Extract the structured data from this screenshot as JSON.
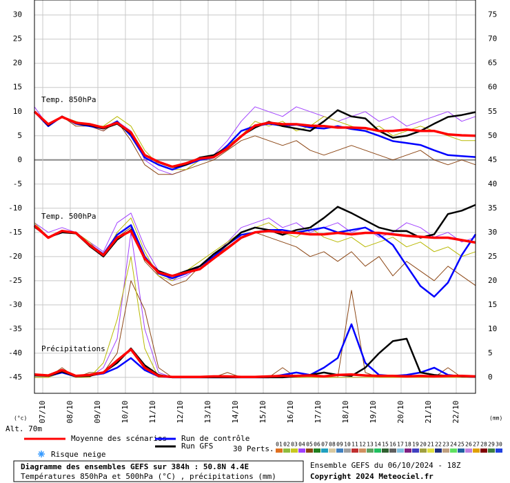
{
  "chart_data": {
    "type": "line",
    "title": "Diagramme des ensembles GEFS sur 384h : 50.8N 4.4E",
    "subtitle": "Températures 850hPa et 500hPa (°C) , précipitations (mm)",
    "run_info": "Ensemble GEFS du 06/10/2024 - 18Z",
    "copyright": "Copyright 2024 Meteociel.fr",
    "annotations": {
      "t850": "Temp. 850hPa",
      "t500": "Temp. 500hPa",
      "precip": "Précipitations",
      "y_unit": "(°c)",
      "y2_unit": "(mm)",
      "altitude": "Alt. 70m",
      "snow": "Risque neige",
      "perts": "30 Perts."
    },
    "categories": [
      "07/10",
      "08/10",
      "09/10",
      "10/10",
      "11/10",
      "12/10",
      "13/10",
      "14/10",
      "15/10",
      "16/10",
      "17/10",
      "18/10",
      "19/10",
      "20/10",
      "21/10",
      "22/10"
    ],
    "ylim": [
      -48.3,
      33.1
    ],
    "yticks": [
      30,
      25,
      20,
      15,
      10,
      5,
      0,
      -5,
      -10,
      -15,
      -20,
      -25,
      -30,
      -35,
      -40,
      -45
    ],
    "y2lim": [
      -3.3,
      78.1
    ],
    "y2ticks": [
      75,
      70,
      65,
      60,
      55,
      50,
      45,
      40,
      35,
      30,
      25,
      20,
      15,
      10,
      5,
      0
    ],
    "grid": true,
    "series": [
      {
        "name": "Moyenne des scénarios",
        "color": "#ff0000",
        "t850": [
          10,
          7.4,
          8.9,
          7.7,
          7.4,
          6.7,
          7.7,
          5.7,
          1,
          -0.4,
          -1.4,
          -0.7,
          0.3,
          0.6,
          2.4,
          4.9,
          7.1,
          7.7,
          7.4,
          7.4,
          7.1,
          7,
          6.7,
          6.7,
          6.6,
          6,
          6,
          6.3,
          6,
          6,
          5.3,
          5.1,
          5
        ],
        "t500": [
          -13.6,
          -16.1,
          -14.7,
          -15.1,
          -17.6,
          -19.7,
          -16.1,
          -14.7,
          -20.4,
          -23.3,
          -24,
          -23.3,
          -22.6,
          -20.4,
          -18.3,
          -16.1,
          -15,
          -14.7,
          -15,
          -15.1,
          -15.4,
          -15.4,
          -15.1,
          -15.4,
          -15.1,
          -15.1,
          -15.4,
          -15.7,
          -15.9,
          -16.1,
          -16.1,
          -16.6,
          -17.1
        ],
        "precip": [
          0.6,
          0.4,
          1.5,
          0.3,
          0.5,
          1,
          3.5,
          5.8,
          2,
          0.3,
          0.1,
          0.1,
          0.1,
          0.2,
          0.2,
          0.1,
          0.1,
          0.2,
          0.3,
          0.3,
          0.4,
          0.2,
          0.5,
          0.6,
          0.4,
          0.3,
          0.3,
          0.2,
          0.3,
          0.2,
          0.3,
          0.3,
          0.2
        ]
      },
      {
        "name": "Run de contrôle",
        "color": "#0000ff",
        "t850": [
          10,
          7,
          9,
          7.5,
          7,
          6.5,
          8,
          5,
          0.5,
          -1,
          -2,
          -1,
          0,
          0.5,
          3,
          6,
          7,
          7.5,
          7.1,
          7.3,
          6.7,
          6.5,
          7,
          6.4,
          6,
          5,
          3.9,
          3.5,
          3.1,
          2,
          1,
          0.8,
          0.6
        ],
        "t500": [
          -13.5,
          -16,
          -15,
          -15,
          -17.5,
          -19.5,
          -15.5,
          -13.5,
          -20,
          -23.5,
          -24.5,
          -23.5,
          -22,
          -20,
          -17.5,
          -15.5,
          -15,
          -14.5,
          -14.5,
          -15,
          -14.5,
          -14,
          -15,
          -14.5,
          -14,
          -15.5,
          -17.6,
          -21.9,
          -26.1,
          -28.3,
          -25.4,
          -19.7,
          -15.4
        ],
        "precip": [
          0.5,
          0.3,
          1,
          0.2,
          0.4,
          0.8,
          2,
          4,
          1.5,
          0.2,
          0,
          0,
          0,
          0,
          0,
          0,
          0,
          0,
          0.5,
          1,
          0.5,
          2,
          4,
          11,
          3,
          0.5,
          0.3,
          0.5,
          1,
          2,
          0.5,
          0.2,
          0.1
        ]
      },
      {
        "name": "Run GFS",
        "color": "#000000",
        "t850": [
          10,
          7.2,
          9,
          7.6,
          7.2,
          6.5,
          7.5,
          5.5,
          1,
          -0.5,
          -1.5,
          -1,
          0.5,
          1,
          2.5,
          5,
          6.7,
          7.9,
          7,
          6.5,
          6,
          8,
          10.3,
          9,
          8.6,
          6,
          4.6,
          5,
          6,
          7.5,
          8.9,
          9.3,
          9.9
        ],
        "t500": [
          -13.8,
          -16,
          -15,
          -15.2,
          -17.8,
          -20,
          -16.5,
          -14.5,
          -20.5,
          -23,
          -24,
          -23,
          -22,
          -19.5,
          -17.5,
          -15,
          -14,
          -14.5,
          -15.5,
          -14.5,
          -14,
          -12,
          -9.7,
          -11,
          -12.5,
          -14,
          -14.7,
          -14.7,
          -16.1,
          -15.4,
          -11.2,
          -10.5,
          -9.3
        ],
        "precip": [
          0.4,
          0.3,
          1.2,
          0.2,
          0.3,
          1,
          3,
          6,
          2.5,
          0.5,
          0,
          0,
          0,
          0,
          0,
          0,
          0,
          0,
          0,
          0.2,
          0.5,
          1,
          0.5,
          0.3,
          2,
          5,
          7.5,
          8,
          1,
          0.5,
          0.3,
          0.2,
          0.1
        ]
      }
    ],
    "members": [
      {
        "color": "#a040ff",
        "t850": [
          11,
          7,
          9,
          8,
          7,
          6,
          8,
          6,
          0,
          -2,
          -3,
          -2,
          0,
          1,
          4,
          8,
          11,
          10,
          9,
          11,
          10,
          9,
          8,
          9,
          10,
          8,
          9,
          7,
          8,
          9,
          10,
          8,
          9
        ],
        "t500": [
          -13,
          -15,
          -14,
          -15,
          -17,
          -19,
          -13,
          -11,
          -18,
          -23,
          -25,
          -24,
          -22,
          -20,
          -17,
          -14,
          -13,
          -12,
          -14,
          -13,
          -15,
          -14,
          -13,
          -15,
          -14,
          -16,
          -15,
          -13,
          -14,
          -16,
          -15,
          -17,
          -16
        ],
        "precip": [
          0,
          0,
          1,
          0,
          0,
          2,
          8,
          30,
          10,
          1,
          0,
          0,
          0,
          0,
          0,
          0,
          0,
          0,
          0,
          0,
          0,
          0,
          0,
          0,
          0,
          0,
          0,
          0,
          0,
          0,
          0,
          0,
          0
        ]
      },
      {
        "color": "#8b4513",
        "t850": [
          10,
          7,
          9,
          7,
          7,
          6,
          8,
          4,
          -1,
          -3,
          -3,
          -2,
          -1,
          0,
          2,
          4,
          5,
          4,
          3,
          4,
          2,
          1,
          2,
          3,
          2,
          1,
          0,
          1,
          2,
          0,
          -1,
          0,
          -1
        ],
        "t500": [
          -14,
          -16,
          -15,
          -15,
          -18,
          -20,
          -16,
          -14,
          -21,
          -24,
          -26,
          -25,
          -22,
          -20,
          -18,
          -16,
          -15,
          -16,
          -17,
          -18,
          -20,
          -19,
          -21,
          -19,
          -22,
          -20,
          -24,
          -21,
          -23,
          -25,
          -22,
          -24,
          -26
        ],
        "precip": [
          0,
          0,
          2,
          0,
          1,
          1,
          5,
          20,
          14,
          2,
          0,
          0,
          0,
          0,
          1,
          0,
          0,
          0,
          2,
          0,
          0,
          0,
          0,
          18,
          1,
          0,
          0,
          0,
          0,
          0,
          2,
          0,
          0
        ]
      },
      {
        "color": "#b8b800",
        "t850": [
          10,
          7,
          9,
          8,
          7,
          7,
          9,
          7,
          2,
          -1,
          -2,
          -2,
          0,
          1,
          3,
          5,
          8,
          7,
          8,
          6,
          7,
          9,
          8,
          7,
          6,
          7,
          5,
          6,
          7,
          6,
          5,
          4,
          4
        ],
        "t500": [
          -13,
          -16,
          -15,
          -15,
          -17,
          -20,
          -15,
          -12,
          -19,
          -24,
          -25,
          -23,
          -21,
          -19,
          -17,
          -15,
          -14,
          -13,
          -15,
          -16,
          -14,
          -16,
          -17,
          -16,
          -18,
          -17,
          -16,
          -18,
          -17,
          -19,
          -18,
          -20,
          -19
        ],
        "precip": [
          0,
          0,
          1,
          0,
          0,
          3,
          12,
          25,
          6,
          0,
          0,
          0,
          0,
          0,
          0,
          0,
          0,
          0,
          0,
          0,
          0,
          0,
          0,
          0,
          0,
          0,
          0,
          0,
          0,
          0,
          0,
          0,
          0
        ]
      }
    ],
    "perturbations": [
      {
        "label": "01",
        "color": "#e07020"
      },
      {
        "label": "02",
        "color": "#8fbc3f"
      },
      {
        "label": "03",
        "color": "#c8c820"
      },
      {
        "label": "04",
        "color": "#a040ff"
      },
      {
        "label": "05",
        "color": "#8b4513"
      },
      {
        "label": "06",
        "color": "#208020"
      },
      {
        "label": "07",
        "color": "#20a0c0"
      },
      {
        "label": "08",
        "color": "#d8c8a0"
      },
      {
        "label": "09",
        "color": "#4080c0"
      },
      {
        "label": "10",
        "color": "#a0a0a0"
      },
      {
        "label": "11",
        "color": "#c03030"
      },
      {
        "label": "12",
        "color": "#d09060"
      },
      {
        "label": "13",
        "color": "#60a060"
      },
      {
        "label": "14",
        "color": "#20c060"
      },
      {
        "label": "15",
        "color": "#306030"
      },
      {
        "label": "16",
        "color": "#606060"
      },
      {
        "label": "17",
        "color": "#80c0e0"
      },
      {
        "label": "18",
        "color": "#802080"
      },
      {
        "label": "19",
        "color": "#4040c0"
      },
      {
        "label": "20",
        "color": "#a0a040"
      },
      {
        "label": "21",
        "color": "#e0e040"
      },
      {
        "label": "22",
        "color": "#203080"
      },
      {
        "label": "23",
        "color": "#c0a080"
      },
      {
        "label": "24",
        "color": "#60e060"
      },
      {
        "label": "25",
        "color": "#2060a0"
      },
      {
        "label": "26",
        "color": "#c080e0"
      },
      {
        "label": "27",
        "color": "#e0a000"
      },
      {
        "label": "28",
        "color": "#800000"
      },
      {
        "label": "29",
        "color": "#408040"
      },
      {
        "label": "30",
        "color": "#2040e0"
      }
    ]
  }
}
